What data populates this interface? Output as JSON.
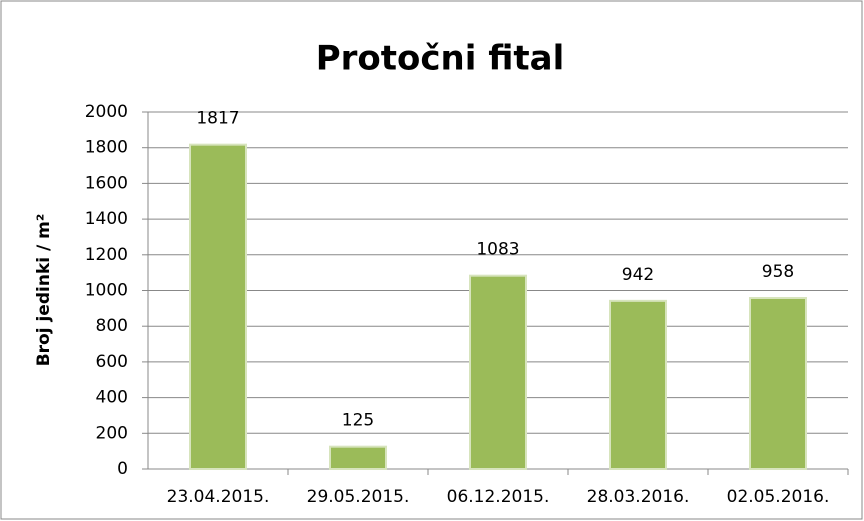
{
  "chart_data": {
    "type": "bar",
    "title": "Protočni fital",
    "y_label": "Broj jedinki / m²",
    "categories": [
      "23.04.2015.",
      "29.05.2015.",
      "06.12.2015.",
      "28.03.2016.",
      "02.05.2016."
    ],
    "values": [
      1817,
      125,
      1083,
      942,
      958
    ],
    "color": "#9bbb59",
    "ylim": [
      0,
      2000
    ],
    "yticks": [
      0,
      200,
      400,
      600,
      800,
      1000,
      1200,
      1400,
      1600,
      1800,
      2000
    ],
    "grid": true
  }
}
